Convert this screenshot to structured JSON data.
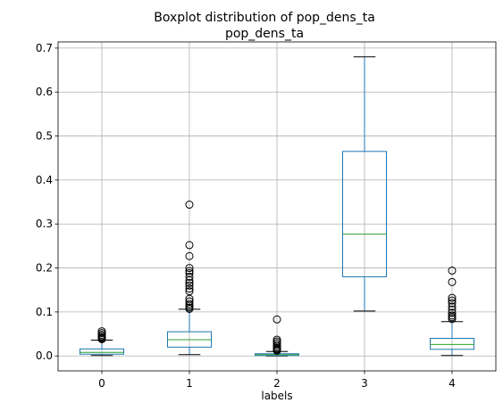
{
  "chart_data": {
    "type": "box",
    "suptitle": "Boxplot distribution of pop_dens_ta",
    "title": "pop_dens_ta",
    "xlabel": "labels",
    "ylabel": "",
    "categories": [
      "0",
      "1",
      "2",
      "3",
      "4"
    ],
    "ylim": [
      -0.034,
      0.714
    ],
    "yticks": [
      0.0,
      0.1,
      0.2,
      0.3,
      0.4,
      0.5,
      0.6,
      0.7
    ],
    "ytick_labels": [
      "0.0",
      "0.1",
      "0.2",
      "0.3",
      "0.4",
      "0.5",
      "0.6",
      "0.7"
    ],
    "grid": true,
    "colors": {
      "box": "#1f77b4",
      "median": "#2ca02c",
      "whisker": "#1f77b4",
      "cap": "#000000",
      "flier": "#000000",
      "grid": "#b0b0b0"
    },
    "boxes": [
      {
        "label": "0",
        "whislo": 0.001,
        "q1": 0.004,
        "med": 0.008,
        "q3": 0.016,
        "whishi": 0.036,
        "fliers": [
          0.038,
          0.04,
          0.042,
          0.045,
          0.048,
          0.052,
          0.056
        ]
      },
      {
        "label": "1",
        "whislo": 0.003,
        "q1": 0.02,
        "med": 0.037,
        "q3": 0.055,
        "whishi": 0.106,
        "fliers": [
          0.107,
          0.11,
          0.114,
          0.118,
          0.124,
          0.13,
          0.147,
          0.153,
          0.16,
          0.166,
          0.172,
          0.18,
          0.188,
          0.193,
          0.2,
          0.227,
          0.252,
          0.344
        ]
      },
      {
        "label": "2",
        "whislo": 0.0,
        "q1": 0.001,
        "med": 0.003,
        "q3": 0.005,
        "whishi": 0.01,
        "fliers": [
          0.012,
          0.014,
          0.016,
          0.018,
          0.021,
          0.025,
          0.029,
          0.033,
          0.037,
          0.083
        ]
      },
      {
        "label": "3",
        "whislo": 0.102,
        "q1": 0.18,
        "med": 0.277,
        "q3": 0.465,
        "whishi": 0.68,
        "fliers": []
      },
      {
        "label": "4",
        "whislo": 0.001,
        "q1": 0.015,
        "med": 0.026,
        "q3": 0.04,
        "whishi": 0.078,
        "fliers": [
          0.084,
          0.088,
          0.092,
          0.098,
          0.105,
          0.112,
          0.12,
          0.126,
          0.132,
          0.168,
          0.194
        ]
      }
    ]
  }
}
